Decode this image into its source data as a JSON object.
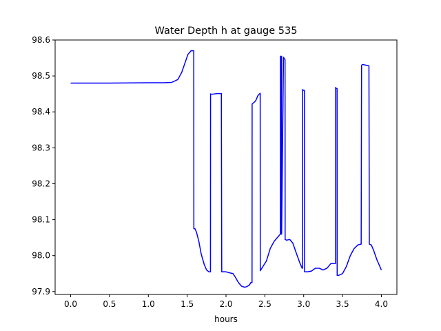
{
  "chart_data": {
    "type": "line",
    "title": "Water Depth h at gauge 535",
    "xlabel": "hours",
    "ylabel": "",
    "xlim": [
      -0.2,
      4.2
    ],
    "ylim": [
      97.892,
      98.6
    ],
    "x_ticks": [
      0.0,
      0.5,
      1.0,
      1.5,
      2.0,
      2.5,
      3.0,
      3.5,
      4.0
    ],
    "x_tick_labels": [
      "0.0",
      "0.5",
      "1.0",
      "1.5",
      "2.0",
      "2.5",
      "3.0",
      "3.5",
      "4.0"
    ],
    "y_ticks": [
      97.9,
      98.0,
      98.1,
      98.2,
      98.3,
      98.4,
      98.5,
      98.6
    ],
    "y_tick_labels": [
      "97.9",
      "98.0",
      "98.1",
      "98.2",
      "98.3",
      "98.4",
      "98.5",
      "98.6"
    ],
    "grid": false,
    "series_color": "#0000ff",
    "series": [
      {
        "x": [
          0.0,
          0.5,
          1.0,
          1.2,
          1.3,
          1.38,
          1.43,
          1.47,
          1.51,
          1.55,
          1.57,
          1.585,
          1.586,
          1.6,
          1.62,
          1.65,
          1.68,
          1.72,
          1.75,
          1.78,
          1.8,
          1.801,
          1.82,
          1.85,
          1.9,
          1.94,
          1.945,
          1.96,
          2.0,
          2.05,
          2.09,
          2.12,
          2.16,
          2.2,
          2.24,
          2.27,
          2.3,
          2.32,
          2.335,
          2.336,
          2.38,
          2.41,
          2.44,
          2.441,
          2.47,
          2.52,
          2.57,
          2.62,
          2.68,
          2.7,
          2.701,
          2.705,
          2.706,
          2.71,
          2.711,
          2.715,
          2.716,
          2.74,
          2.76,
          2.761,
          2.78,
          2.82,
          2.86,
          2.9,
          2.95,
          2.98,
          2.985,
          2.986,
          3.0,
          3.01,
          3.011,
          3.05,
          3.1,
          3.15,
          3.2,
          3.25,
          3.3,
          3.35,
          3.4,
          3.41,
          3.411,
          3.42,
          3.43,
          3.431,
          3.45,
          3.5,
          3.55,
          3.6,
          3.65,
          3.7,
          3.74,
          3.745,
          3.76,
          3.8,
          3.84,
          3.845,
          3.87,
          3.9,
          3.94,
          3.97,
          4.0
        ],
        "y": [
          98.48,
          98.48,
          98.481,
          98.481,
          98.482,
          98.49,
          98.51,
          98.535,
          98.56,
          98.57,
          98.57,
          98.57,
          98.075,
          98.075,
          98.065,
          98.04,
          98.005,
          97.975,
          97.96,
          97.955,
          97.955,
          98.45,
          98.449,
          98.45,
          98.451,
          98.451,
          97.955,
          97.955,
          97.955,
          97.952,
          97.95,
          97.94,
          97.925,
          97.915,
          97.912,
          97.914,
          97.918,
          97.925,
          97.925,
          98.422,
          98.43,
          98.445,
          98.452,
          97.958,
          97.968,
          97.985,
          98.02,
          98.04,
          98.055,
          98.06,
          98.555,
          98.555,
          98.06,
          98.06,
          98.555,
          98.555,
          98.06,
          98.552,
          98.545,
          98.045,
          98.043,
          98.045,
          98.035,
          98.01,
          97.98,
          97.965,
          97.965,
          98.462,
          98.46,
          98.46,
          97.955,
          97.955,
          97.957,
          97.965,
          97.965,
          97.96,
          97.965,
          97.978,
          97.978,
          97.978,
          98.468,
          98.465,
          98.465,
          97.945,
          97.945,
          97.95,
          97.97,
          98.0,
          98.02,
          98.03,
          98.032,
          98.53,
          98.532,
          98.53,
          98.528,
          98.032,
          98.03,
          98.015,
          97.99,
          97.975,
          97.96
        ]
      }
    ]
  }
}
